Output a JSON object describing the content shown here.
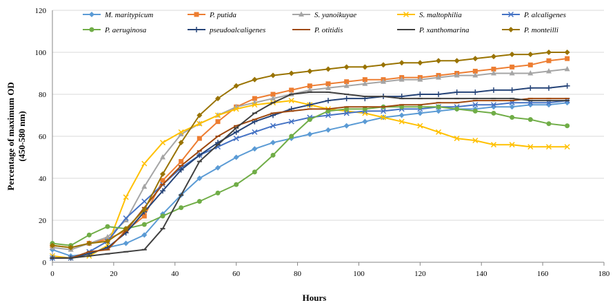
{
  "chart_data": {
    "type": "line",
    "title": "",
    "xlabel": "Hours",
    "ylabel": "Percentage of maximum OD",
    "ylabel_sub": "(450-580 nm)",
    "xlim": [
      0,
      180
    ],
    "ylim": [
      0,
      120
    ],
    "xticks": [
      0,
      20,
      40,
      60,
      80,
      100,
      120,
      140,
      160,
      180
    ],
    "yticks": [
      0,
      20,
      40,
      60,
      80,
      100,
      120
    ],
    "legend_position": "top",
    "x": [
      0,
      6,
      12,
      18,
      24,
      30,
      36,
      42,
      48,
      54,
      60,
      66,
      72,
      78,
      84,
      90,
      96,
      102,
      108,
      114,
      120,
      126,
      132,
      138,
      144,
      150,
      156,
      162,
      168
    ],
    "series": [
      {
        "name": "M. maritypicum",
        "color": "#5B9BD5",
        "marker": "diamond",
        "values": [
          6,
          3,
          4,
          7,
          9,
          13,
          23,
          32,
          40,
          45,
          50,
          54,
          57,
          59,
          61,
          63,
          65,
          67,
          69,
          70,
          71,
          72,
          73,
          73,
          74,
          74,
          75,
          75,
          76
        ]
      },
      {
        "name": "P. putida",
        "color": "#ED7D31",
        "marker": "square",
        "values": [
          8,
          7,
          9,
          11,
          15,
          22,
          39,
          48,
          59,
          67,
          74,
          78,
          80,
          82,
          84,
          85,
          86,
          87,
          87,
          88,
          88,
          89,
          90,
          91,
          92,
          93,
          94,
          96,
          97
        ]
      },
      {
        "name": "S. yanoikuyae",
        "color": "#A5A5A5",
        "marker": "triangle",
        "values": [
          7,
          6,
          9,
          12,
          20,
          36,
          50,
          61,
          66,
          70,
          74,
          76,
          78,
          80,
          82,
          83,
          84,
          85,
          86,
          87,
          87,
          88,
          89,
          89,
          90,
          90,
          90,
          91,
          92
        ]
      },
      {
        "name": "S. maltophilia",
        "color": "#FFC000",
        "marker": "x",
        "values": [
          3,
          2,
          3,
          8,
          31,
          47,
          57,
          62,
          66,
          70,
          73,
          75,
          76,
          77,
          75,
          73,
          72,
          71,
          69,
          67,
          65,
          62,
          59,
          58,
          56,
          56,
          55,
          55,
          55
        ]
      },
      {
        "name": "P. alcaligenes",
        "color": "#4472C4",
        "marker": "x",
        "values": [
          2,
          2,
          5,
          10,
          21,
          29,
          37,
          45,
          51,
          55,
          59,
          62,
          65,
          67,
          69,
          70,
          71,
          72,
          72,
          73,
          73,
          74,
          74,
          75,
          75,
          76,
          76,
          76,
          77
        ]
      },
      {
        "name": "P. aeruginosa",
        "color": "#70AD47",
        "marker": "circle",
        "values": [
          9,
          8,
          13,
          17,
          16,
          18,
          22,
          26,
          29,
          33,
          37,
          43,
          51,
          60,
          68,
          72,
          73,
          73,
          74,
          74,
          74,
          74,
          73,
          72,
          71,
          69,
          68,
          66,
          65
        ]
      },
      {
        "name": "pseudoalcaligenes",
        "color": "#264478",
        "marker": "plus",
        "values": [
          2,
          2,
          4,
          7,
          14,
          24,
          34,
          44,
          51,
          57,
          62,
          67,
          70,
          73,
          75,
          77,
          78,
          78,
          79,
          79,
          80,
          80,
          81,
          81,
          82,
          82,
          83,
          83,
          84
        ]
      },
      {
        "name": "P. otitidis",
        "color": "#9E480E",
        "marker": "dash",
        "values": [
          2,
          2,
          5,
          6,
          15,
          26,
          37,
          46,
          53,
          60,
          65,
          68,
          71,
          72,
          73,
          73,
          74,
          74,
          74,
          75,
          75,
          76,
          76,
          77,
          77,
          77,
          78,
          78,
          78
        ]
      },
      {
        "name": "P. xanthomarina",
        "color": "#404040",
        "marker": "dash",
        "values": [
          2,
          2,
          3,
          4,
          5,
          6,
          16,
          32,
          48,
          56,
          64,
          71,
          76,
          80,
          81,
          81,
          80,
          79,
          79,
          78,
          78,
          78,
          78,
          78,
          78,
          78,
          77,
          77,
          77
        ]
      },
      {
        "name": "P. monteilli",
        "color": "#997300",
        "marker": "diamond",
        "values": [
          8,
          7,
          9,
          10,
          16,
          25,
          42,
          57,
          70,
          78,
          84,
          87,
          89,
          90,
          91,
          92,
          93,
          93,
          94,
          95,
          95,
          96,
          96,
          97,
          98,
          99,
          99,
          100,
          100
        ]
      }
    ]
  }
}
